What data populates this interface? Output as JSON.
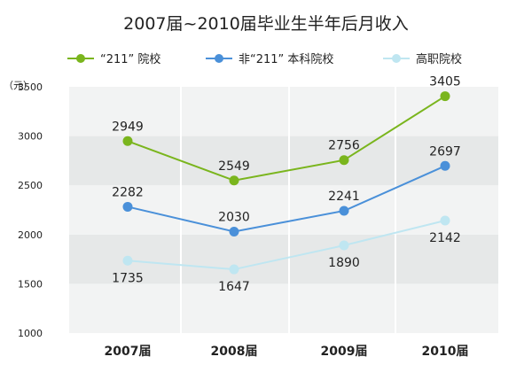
{
  "chart_data": {
    "type": "line",
    "title": "2007届~2010届毕业生半年后月收入",
    "unit_label": "（元）",
    "categories": [
      "2007届",
      "2008届",
      "2009届",
      "2010届"
    ],
    "ylim": [
      1000,
      3500
    ],
    "yticks": [
      1000,
      1500,
      2000,
      2500,
      3000,
      3500
    ],
    "grid": "alternating horizontal bands",
    "legend_position": "top",
    "series": [
      {
        "name": "“211” 院校",
        "values": [
          2949,
          2549,
          2756,
          3405
        ],
        "color": "#7ab51d"
      },
      {
        "name": "非“211” 本科院校",
        "values": [
          2282,
          2030,
          2241,
          2697
        ],
        "color": "#4a90d9"
      },
      {
        "name": "高职院校",
        "values": [
          1735,
          1647,
          1890,
          2142
        ],
        "color": "#bfe6f1"
      }
    ]
  }
}
